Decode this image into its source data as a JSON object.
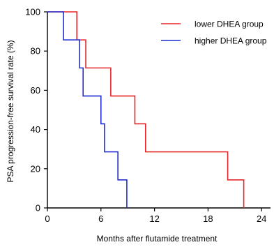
{
  "chart_data": {
    "type": "line",
    "step": true,
    "xlabel": "Months after flutamide treatment",
    "ylabel": "PSA progression-free survival rate (%)",
    "xlim": [
      0,
      25
    ],
    "ylim": [
      0,
      100
    ],
    "xticks": [
      0,
      6,
      12,
      18,
      24
    ],
    "yticks": [
      0,
      20,
      40,
      60,
      80,
      100
    ],
    "legend_position": "top-right",
    "series": [
      {
        "name": "lower DHEA group",
        "color": "#e8262a",
        "x": [
          0,
          3.3,
          3.3,
          4.3,
          4.3,
          7.1,
          7.1,
          9.8,
          9.8,
          11.0,
          11.0,
          20.2,
          20.2,
          22.0,
          22.0
        ],
        "y": [
          100,
          100,
          85.7,
          85.7,
          71.4,
          71.4,
          57.1,
          57.1,
          42.9,
          42.9,
          28.6,
          28.6,
          14.3,
          14.3,
          0
        ]
      },
      {
        "name": "higher DHEA group",
        "color": "#1f2fd0",
        "x": [
          0,
          1.8,
          1.8,
          3.6,
          3.6,
          4.0,
          4.0,
          6.0,
          6.0,
          6.4,
          6.4,
          7.9,
          7.9,
          8.9,
          8.9
        ],
        "y": [
          100,
          100,
          85.7,
          85.7,
          71.4,
          71.4,
          57.1,
          57.1,
          42.9,
          42.9,
          28.6,
          28.6,
          14.3,
          14.3,
          0
        ]
      }
    ]
  }
}
